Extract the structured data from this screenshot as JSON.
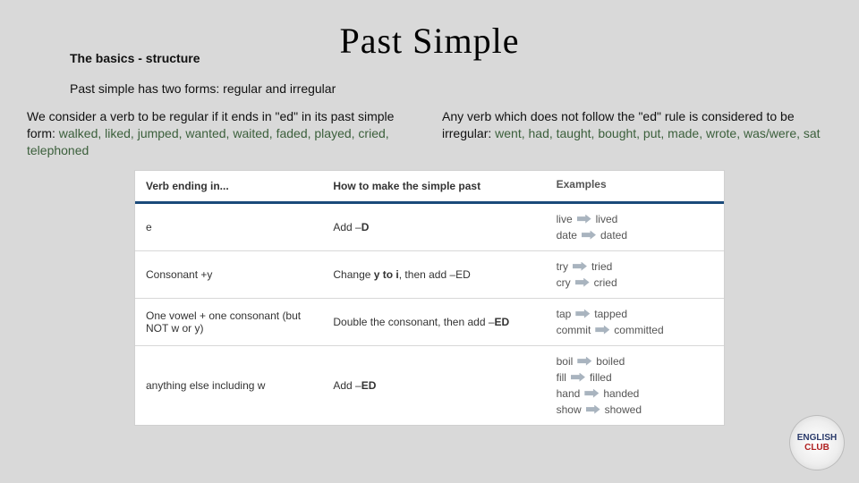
{
  "title": "Past Simple",
  "subtitle": "The basics - structure",
  "intro": "Past simple has two forms: regular and irregular",
  "left_col": {
    "text": "We consider a verb to be regular if it ends in \"ed\" in its past simple form: ",
    "examples": "walked, liked, jumped, wanted, waited, faded, played, cried, telephoned"
  },
  "right_col": {
    "text": "Any verb which does not follow the \"ed\" rule is considered to be irregular: ",
    "examples": "went, had, taught, bought, put, made, wrote, was/were, sat"
  },
  "table": {
    "headers": [
      "Verb ending in...",
      "How to make the simple past",
      "Examples"
    ],
    "rows": [
      {
        "ending": "e",
        "rule_pre": "Add –",
        "rule_bold": "D",
        "rule_post": "",
        "examples": [
          [
            "live",
            "lived"
          ],
          [
            "date",
            "dated"
          ]
        ]
      },
      {
        "ending": "Consonant +y",
        "rule_pre": "Change ",
        "rule_bold": "y to i",
        "rule_post": ", then add –ED",
        "examples": [
          [
            "try",
            "tried"
          ],
          [
            "cry",
            "cried"
          ]
        ]
      },
      {
        "ending": "One vowel + one consonant (but NOT w or y)",
        "rule_pre": "Double the consonant, then add –",
        "rule_bold": "ED",
        "rule_post": "",
        "examples": [
          [
            "tap",
            "tapped"
          ],
          [
            "commit",
            "committed"
          ]
        ]
      },
      {
        "ending": "anything else including w",
        "rule_pre": "Add –",
        "rule_bold": "ED",
        "rule_post": "",
        "examples": [
          [
            "boil",
            "boiled"
          ],
          [
            "fill",
            "filled"
          ],
          [
            "hand",
            "handed"
          ],
          [
            "show",
            "showed"
          ]
        ]
      }
    ]
  },
  "logo_line1": "ENGLISH",
  "logo_line2": "CLUB"
}
